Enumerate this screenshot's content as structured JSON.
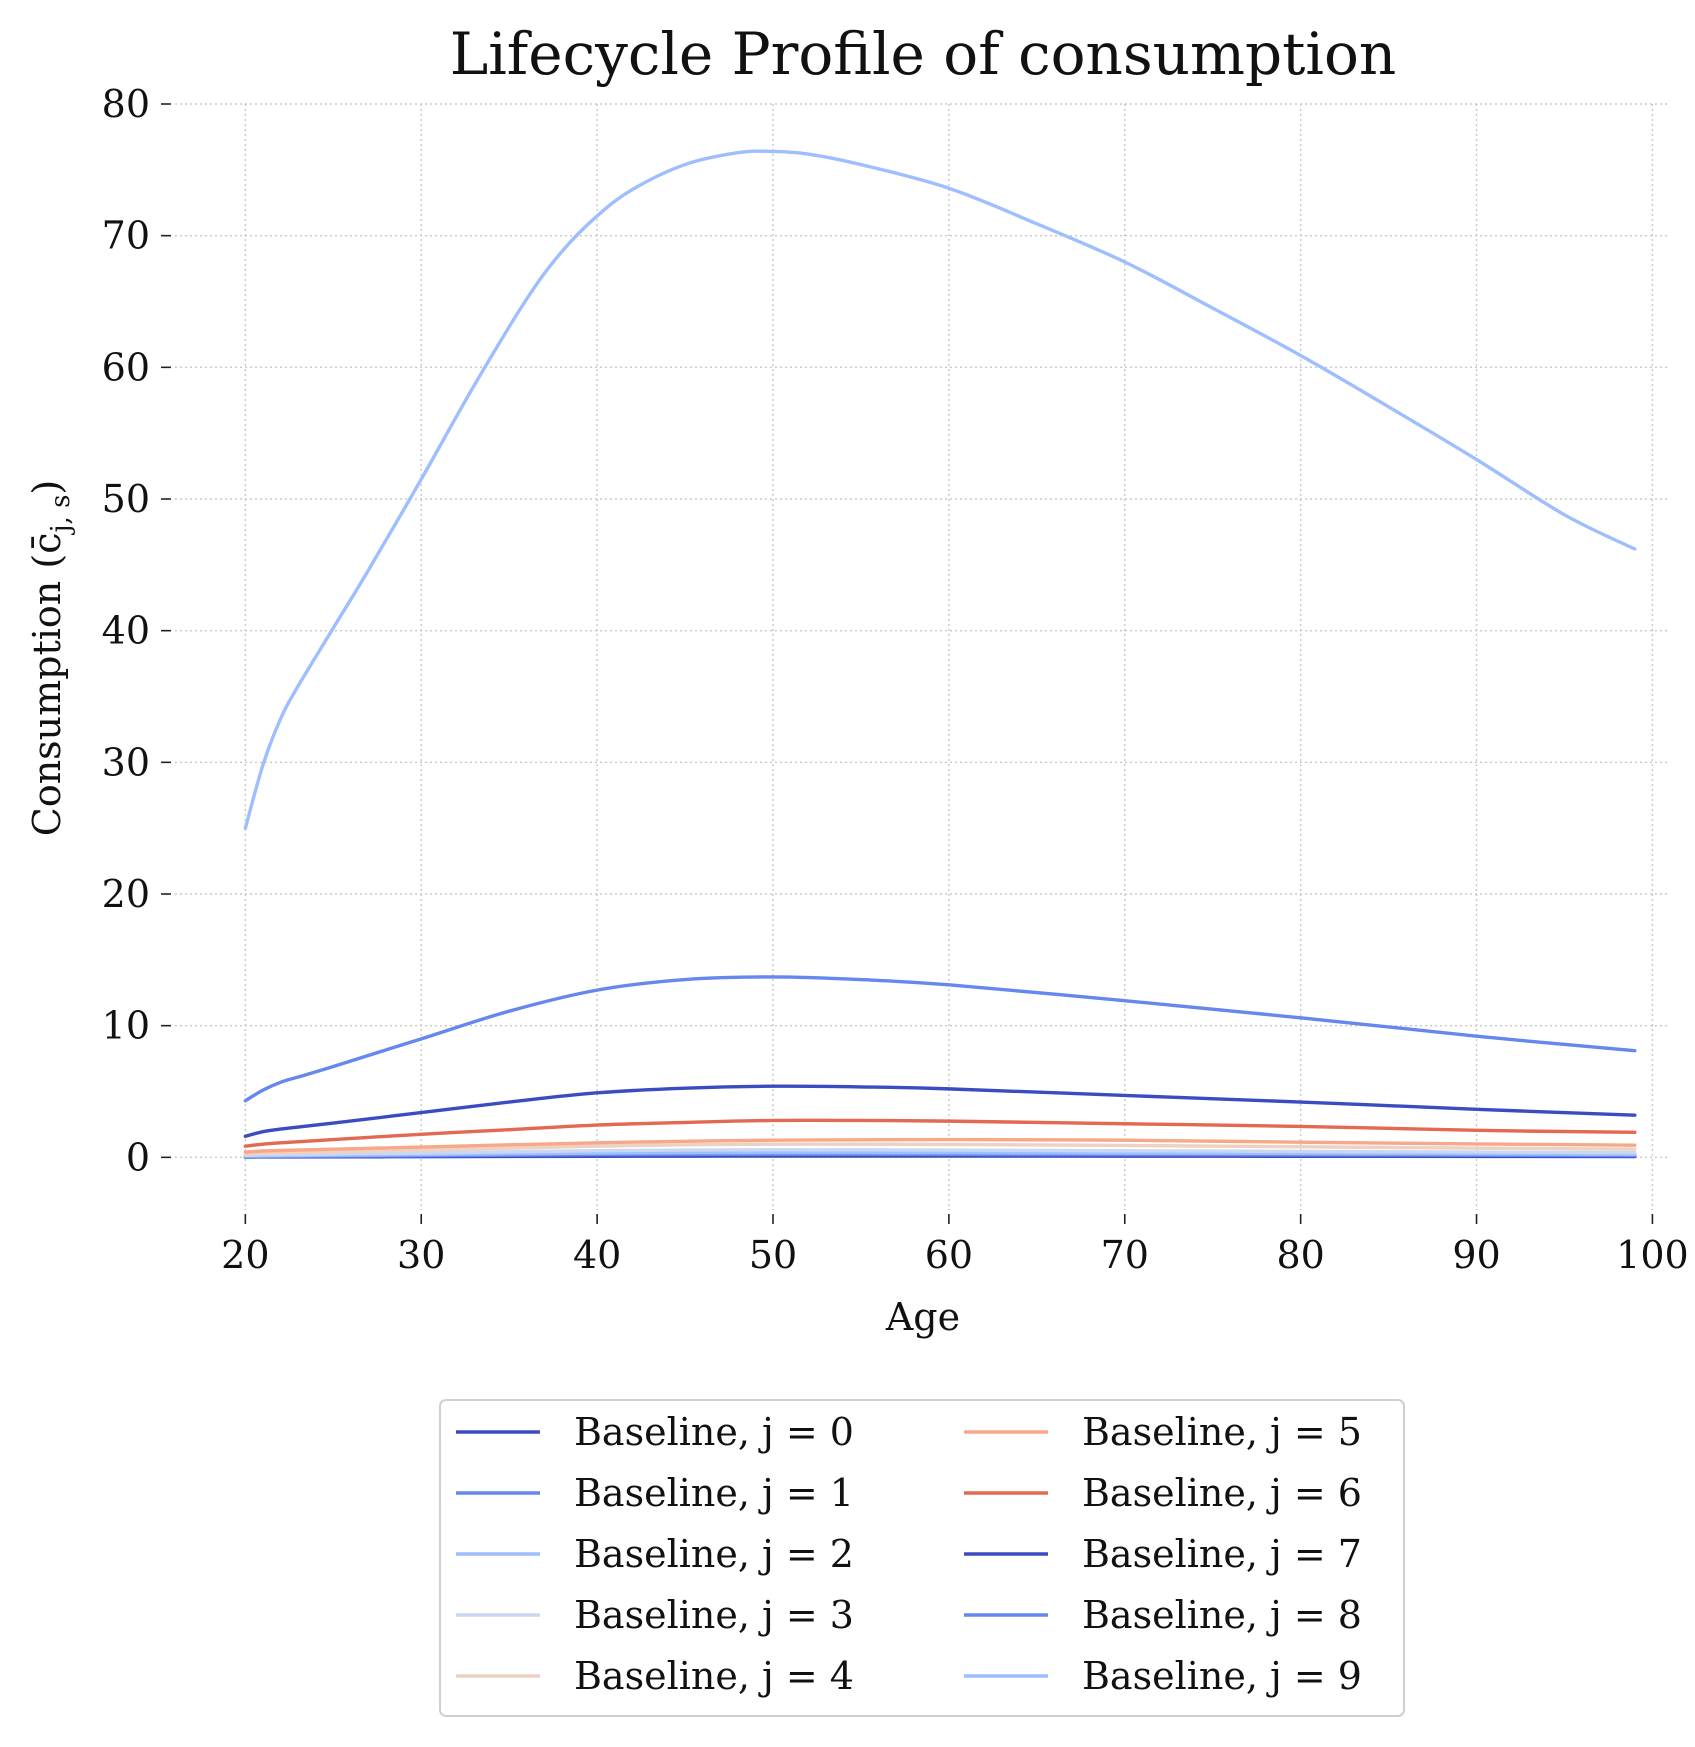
{
  "chart_data": {
    "type": "line",
    "title": "Lifecycle Profile of consumption",
    "xlabel": "Age",
    "ylabel": "Consumption (c̄",
    "ylabel_sub": "j, s",
    "ylabel_close": ")",
    "xlim": [
      16,
      101
    ],
    "ylim": [
      -4,
      80
    ],
    "xticks": [
      20,
      30,
      40,
      50,
      60,
      70,
      80,
      90,
      100
    ],
    "yticks": [
      0,
      10,
      20,
      30,
      40,
      50,
      60,
      70,
      80
    ],
    "grid": true,
    "legend_placement": "bottom-center",
    "legend_columns": 2,
    "series": [
      {
        "name": "Baseline, j = 0",
        "color": "#3b4cc0",
        "x": [
          20,
          21,
          22,
          25,
          30,
          35,
          40,
          45,
          50,
          55,
          60,
          70,
          80,
          90,
          99
        ],
        "y": [
          0.02,
          0.03,
          0.03,
          0.04,
          0.05,
          0.07,
          0.08,
          0.09,
          0.1,
          0.1,
          0.1,
          0.09,
          0.08,
          0.07,
          0.06
        ]
      },
      {
        "name": "Baseline, j = 1",
        "color": "#6687ed",
        "x": [
          20,
          21,
          22,
          25,
          30,
          35,
          40,
          45,
          50,
          55,
          60,
          70,
          80,
          90,
          99
        ],
        "y": [
          0.05,
          0.06,
          0.07,
          0.09,
          0.12,
          0.16,
          0.2,
          0.22,
          0.23,
          0.23,
          0.22,
          0.2,
          0.18,
          0.16,
          0.14
        ]
      },
      {
        "name": "Baseline, j = 2",
        "color": "#9ebeff",
        "x": [
          20,
          21,
          22,
          25,
          30,
          35,
          40,
          45,
          50,
          55,
          60,
          70,
          80,
          90,
          99
        ],
        "y": [
          0.1,
          0.12,
          0.13,
          0.16,
          0.21,
          0.27,
          0.32,
          0.35,
          0.36,
          0.36,
          0.35,
          0.32,
          0.29,
          0.26,
          0.22
        ]
      },
      {
        "name": "Baseline, j = 3",
        "color": "#c9d7f0",
        "x": [
          20,
          21,
          22,
          25,
          30,
          35,
          40,
          45,
          50,
          55,
          60,
          70,
          80,
          90,
          99
        ],
        "y": [
          0.15,
          0.18,
          0.2,
          0.25,
          0.33,
          0.42,
          0.5,
          0.55,
          0.57,
          0.57,
          0.55,
          0.5,
          0.45,
          0.4,
          0.35
        ]
      },
      {
        "name": "Baseline, j = 4",
        "color": "#edd1c2",
        "x": [
          20,
          21,
          22,
          25,
          30,
          35,
          40,
          45,
          50,
          55,
          60,
          70,
          80,
          90,
          99
        ],
        "y": [
          0.25,
          0.3,
          0.33,
          0.42,
          0.55,
          0.7,
          0.85,
          0.95,
          1.0,
          1.0,
          0.98,
          0.9,
          0.8,
          0.7,
          0.62
        ]
      },
      {
        "name": "Baseline, j = 5",
        "color": "#f7a889",
        "x": [
          20,
          21,
          22,
          25,
          30,
          35,
          40,
          45,
          50,
          55,
          60,
          70,
          80,
          90,
          99
        ],
        "y": [
          0.4,
          0.48,
          0.52,
          0.62,
          0.78,
          0.95,
          1.1,
          1.22,
          1.3,
          1.33,
          1.35,
          1.3,
          1.15,
          1.02,
          0.92
        ]
      },
      {
        "name": "Baseline, j = 6",
        "color": "#e26952",
        "x": [
          20,
          21,
          22,
          25,
          30,
          35,
          40,
          45,
          50,
          55,
          60,
          70,
          80,
          90,
          99
        ],
        "y": [
          0.85,
          1.0,
          1.1,
          1.35,
          1.75,
          2.1,
          2.45,
          2.65,
          2.8,
          2.8,
          2.75,
          2.55,
          2.35,
          2.05,
          1.9
        ]
      },
      {
        "name": "Baseline, j = 7",
        "color": "#3b4cc0",
        "x": [
          20,
          21,
          22,
          25,
          30,
          35,
          40,
          45,
          50,
          55,
          60,
          70,
          80,
          90,
          99
        ],
        "y": [
          1.6,
          1.95,
          2.15,
          2.6,
          3.4,
          4.2,
          4.9,
          5.25,
          5.4,
          5.35,
          5.2,
          4.7,
          4.2,
          3.65,
          3.2
        ]
      },
      {
        "name": "Baseline, j = 8",
        "color": "#6687ed",
        "x": [
          20,
          21,
          22,
          23,
          25,
          30,
          35,
          40,
          45,
          50,
          55,
          60,
          70,
          80,
          90,
          99
        ],
        "y": [
          4.3,
          5.1,
          5.7,
          6.1,
          6.9,
          9.0,
          11.1,
          12.7,
          13.5,
          13.7,
          13.5,
          13.1,
          11.9,
          10.6,
          9.2,
          8.1
        ]
      },
      {
        "name": "Baseline, j = 9",
        "color": "#9ebeff",
        "x": [
          20,
          21,
          22,
          23,
          25,
          27,
          30,
          33,
          36,
          38,
          40,
          42,
          45,
          48,
          50,
          52,
          55,
          60,
          65,
          70,
          75,
          80,
          85,
          90,
          95,
          99
        ],
        "y": [
          25.0,
          29.8,
          33.3,
          35.8,
          40.2,
          44.6,
          51.5,
          58.6,
          65.2,
          68.8,
          71.5,
          73.5,
          75.4,
          76.3,
          76.4,
          76.2,
          75.4,
          73.6,
          70.9,
          68.0,
          64.5,
          60.9,
          57.0,
          53.0,
          48.8,
          46.2
        ]
      }
    ]
  }
}
